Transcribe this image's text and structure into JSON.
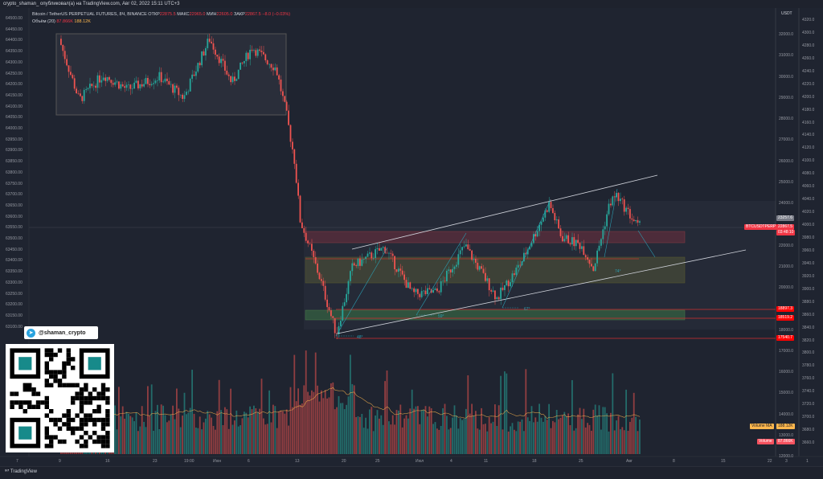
{
  "header": {
    "title": "crypto_shaman_ опубликовал(а) на TradingView.com, Авг 02, 2022 15:11 UTC+3"
  },
  "legend": {
    "symbol": "Bitcoin / TetherUS PERPETUAL FUTURES, 8Ч, BINANCE",
    "o_label": "ОТКР",
    "o": "22875.5",
    "h_label": "МАКС",
    "h": "22965.0",
    "l_label": "МИН",
    "l": "22605.0",
    "c_label": "ЗАКР",
    "c": "22867.5",
    "chg": "−8.0 (−0.03%)",
    "vol_label": "Объём (20)",
    "vol": "87.866K",
    "vol_ma": "188.12K"
  },
  "left_axis": [
    "64500.00",
    "64450.00",
    "64400.00",
    "64350.00",
    "64300.00",
    "64250.00",
    "64200.00",
    "64150.00",
    "64100.00",
    "64050.00",
    "64000.00",
    "63950.00",
    "63900.00",
    "63850.00",
    "63800.00",
    "63750.00",
    "63700.00",
    "63650.00",
    "63600.00",
    "63550.00",
    "63500.00",
    "63450.00",
    "63400.00",
    "63350.00",
    "63300.00",
    "63250.00",
    "63200.00",
    "63150.00",
    "63100.00"
  ],
  "right_axis": {
    "currency": "USDT",
    "ticks": [
      "32000.0",
      "31000.0",
      "30000.0",
      "29000.0",
      "28000.0",
      "27000.0",
      "26000.0",
      "25000.0",
      "24000.0",
      "22000.0",
      "21000.0",
      "20000.0",
      "18000.0",
      "17000.0",
      "16000.0",
      "15000.0",
      "14000.0",
      "13000.0",
      "12000.0"
    ]
  },
  "right_axis2": [
    "4320.0",
    "4300.0",
    "4280.0",
    "4260.0",
    "4240.0",
    "4220.0",
    "4200.0",
    "4180.0",
    "4160.0",
    "4140.0",
    "4120.0",
    "4100.0",
    "4080.0",
    "4060.0",
    "4040.0",
    "4020.0",
    "4000.0",
    "3980.0",
    "3960.0",
    "3940.0",
    "3920.0",
    "3900.0",
    "3880.0",
    "3860.0",
    "3840.0",
    "3820.0",
    "3800.0",
    "3780.0",
    "3760.0",
    "3740.0",
    "3720.0",
    "3700.0",
    "3680.0",
    "3660.0"
  ],
  "tags": {
    "high": "23257.6",
    "last": "22867.5",
    "countdown": "03:48:10",
    "symbol": "BTCUSDTPERP",
    "l1": "18897.3",
    "l2": "18519.2",
    "l3": "17540.7",
    "vol_ma_label": "Volume MA",
    "vol_ma": "188.12K",
    "vol_label": "Volume",
    "vol": "87.866K"
  },
  "angles": [
    "48°",
    "59°",
    "67°",
    "74°"
  ],
  "time_axis": [
    "7",
    "9",
    "16",
    "23",
    "19:00",
    "Июн",
    "6",
    "13",
    "20",
    "25",
    "Июл",
    "4",
    "11",
    "18",
    "25",
    "Авг",
    "8",
    "15",
    "22",
    "3",
    "1"
  ],
  "telegram": {
    "handle": "@shaman_crypto"
  },
  "brand": "TradingView",
  "colors": {
    "up": "#26a69a",
    "down": "#ef5350",
    "channel": "#d1d4dc",
    "angle": "#2b9fb3"
  }
}
